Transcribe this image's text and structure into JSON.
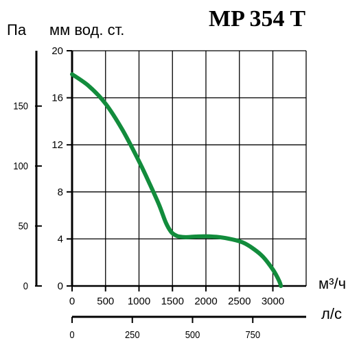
{
  "chart_data": {
    "type": "line",
    "title": "MP 354 T",
    "pressure_units": {
      "pa_label": "Па",
      "mm_label": "мм вод. ст."
    },
    "flow_units": {
      "m3h_label": "м³/ч",
      "ls_label": "л/с"
    },
    "axes": {
      "mm_ticks": [
        "0",
        "4",
        "8",
        "12",
        "16",
        "20"
      ],
      "pa_ticks": [
        "0",
        "50",
        "100",
        "150"
      ],
      "m3h_ticks": [
        "0",
        "500",
        "1000",
        "1500",
        "2000",
        "2500",
        "3000"
      ],
      "ls_ticks": [
        "0",
        "250",
        "500",
        "750"
      ],
      "ylim_mm": [
        0,
        20
      ],
      "xlim_m3h": [
        0,
        3400
      ],
      "grid": true
    },
    "series": [
      {
        "color": "#128c3c",
        "x": [
          0,
          250,
          500,
          750,
          1000,
          1150,
          1300,
          1400,
          1480,
          1550,
          1600,
          1700,
          1850,
          2000,
          2200,
          2400,
          2550,
          2700,
          2850,
          3000,
          3080,
          3110,
          3120
        ],
        "y": [
          18.0,
          17.0,
          15.5,
          13.3,
          10.6,
          8.8,
          6.9,
          5.4,
          4.6,
          4.3,
          4.2,
          4.15,
          4.2,
          4.22,
          4.15,
          3.95,
          3.7,
          3.2,
          2.5,
          1.4,
          0.6,
          0.2,
          0.0
        ]
      }
    ]
  }
}
